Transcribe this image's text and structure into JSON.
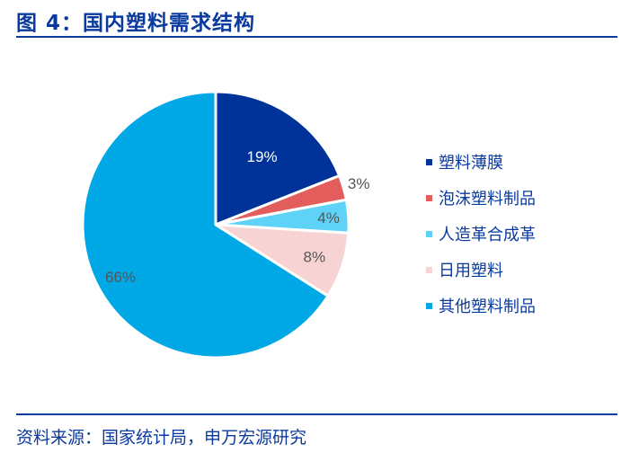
{
  "header": {
    "title": "图 4：国内塑料需求结构"
  },
  "footer": {
    "source": "资料来源：国家统计局，申万宏源研究"
  },
  "colors": {
    "accent": "#0b3a9e"
  },
  "legend": {
    "items": [
      {
        "label": "塑料薄膜",
        "color": "#003399"
      },
      {
        "label": "泡沫塑料制品",
        "color": "#e35d5d"
      },
      {
        "label": "人造革合成革",
        "color": "#5fd3f7"
      },
      {
        "label": "日用塑料",
        "color": "#f8d3d3"
      },
      {
        "label": "其他塑料制品",
        "color": "#00a8e6"
      }
    ]
  },
  "slice_labels": [
    "19%",
    "3%",
    "4%",
    "8%",
    "66%"
  ],
  "chart_data": {
    "type": "pie",
    "title": "图 4：国内塑料需求结构",
    "categories": [
      "塑料薄膜",
      "泡沫塑料制品",
      "人造革合成革",
      "日用塑料",
      "其他塑料制品"
    ],
    "values": [
      19,
      3,
      4,
      8,
      66
    ],
    "unit": "%",
    "colors": [
      "#003399",
      "#e35d5d",
      "#5fd3f7",
      "#f8d3d3",
      "#00a8e6"
    ],
    "start_angle": "12 o'clock, clockwise",
    "legend_position": "right",
    "source": "资料来源：国家统计局，申万宏源研究"
  }
}
